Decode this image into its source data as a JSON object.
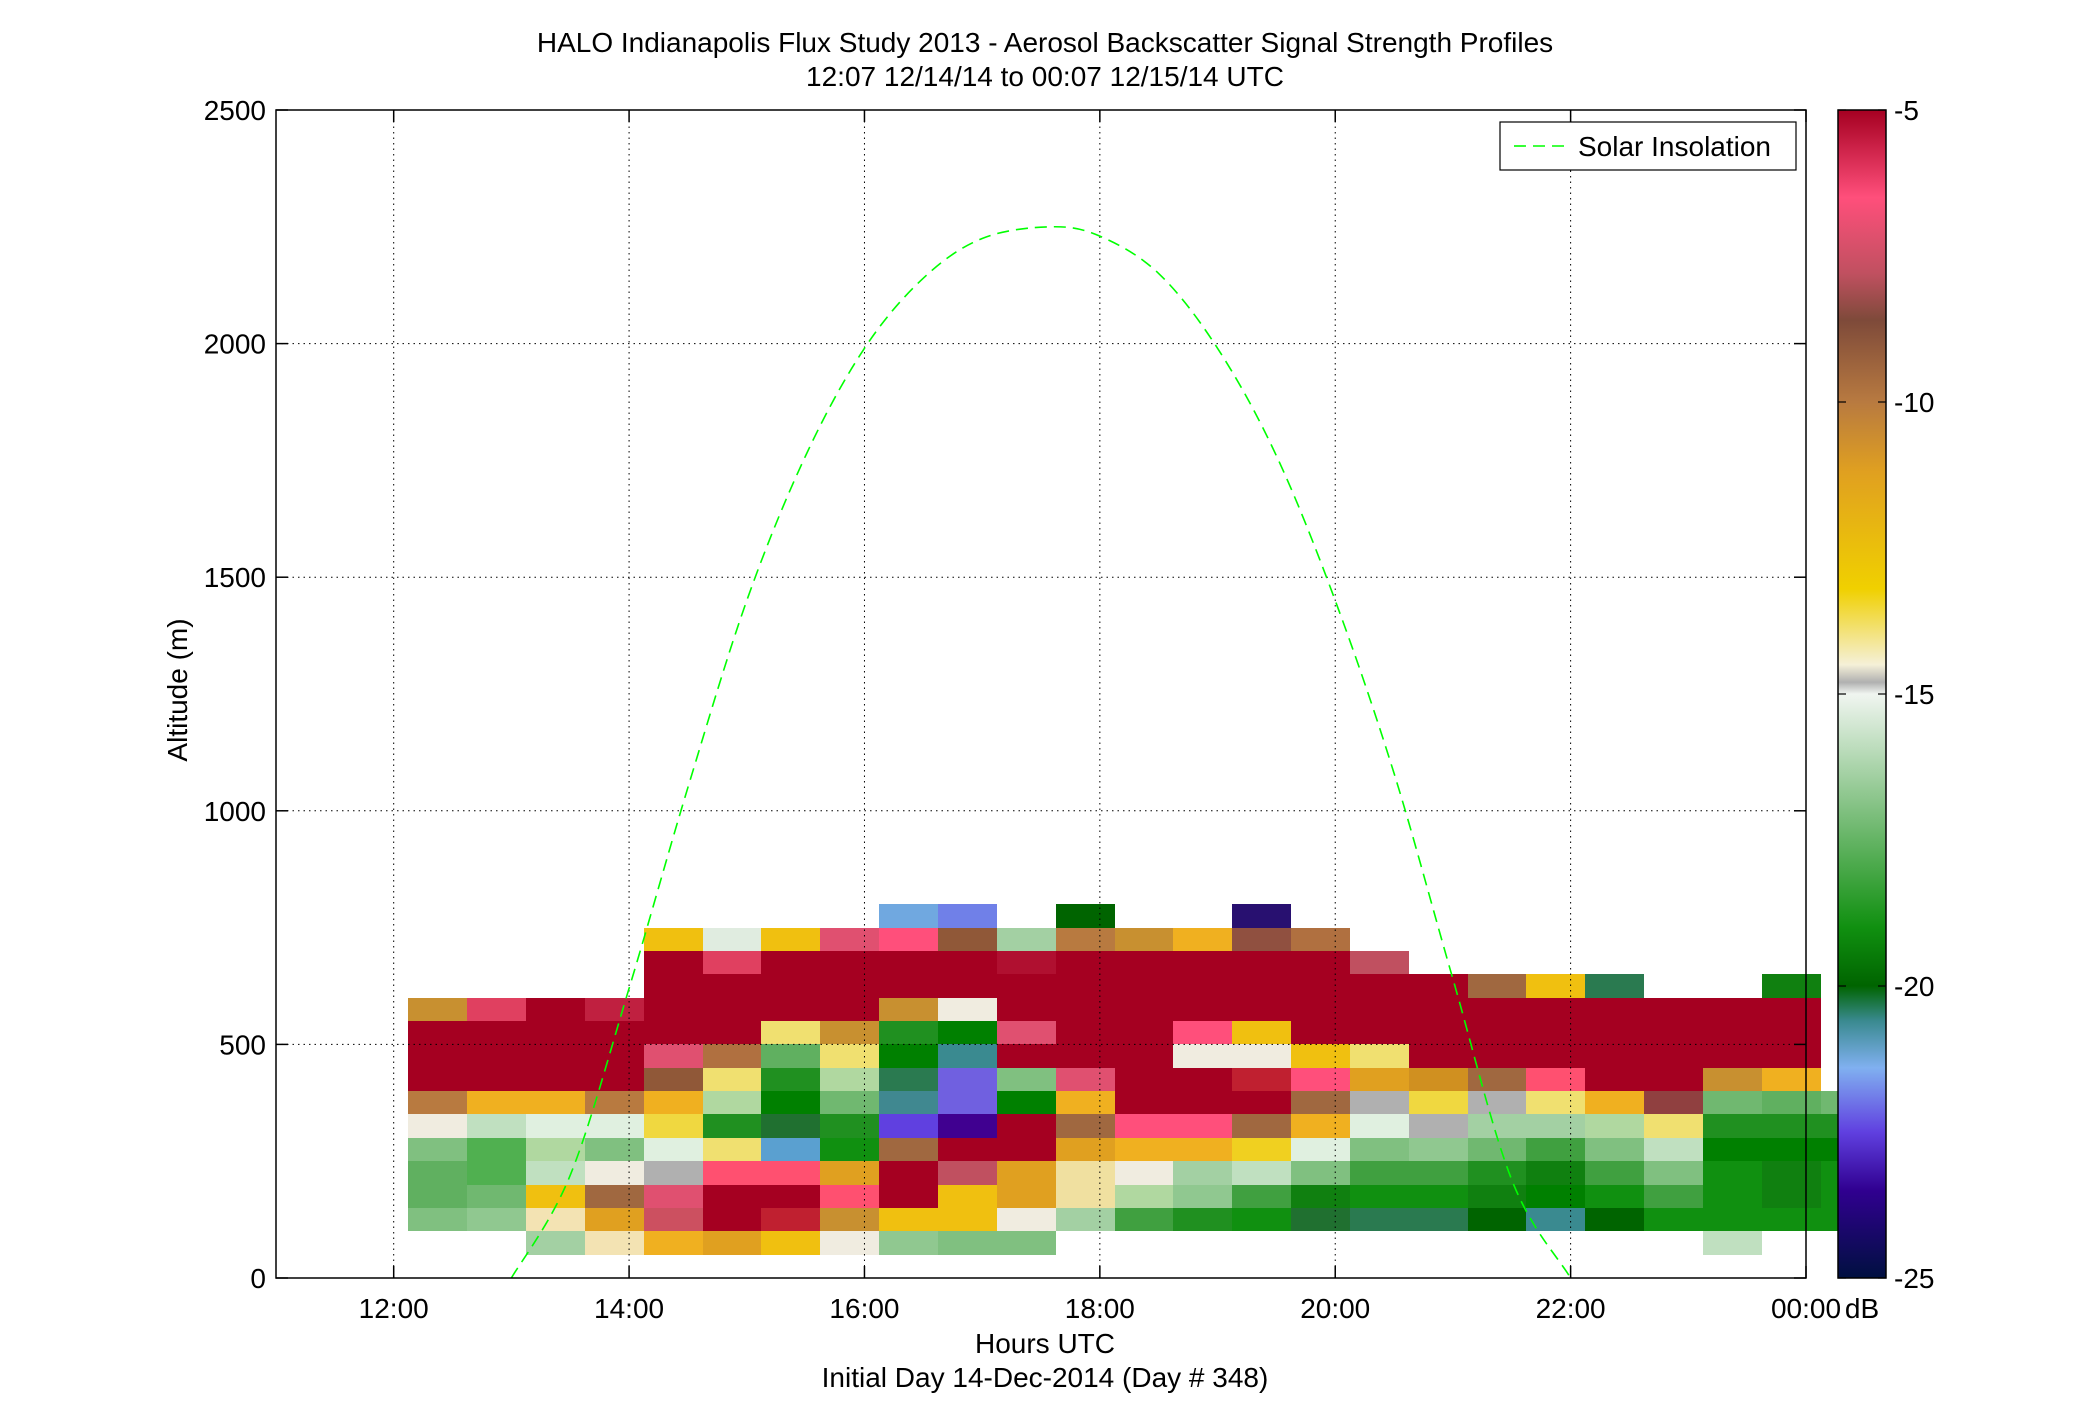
{
  "chart_data": {
    "type": "heatmap",
    "title_line1": "HALO Indianapolis Flux Study 2013 - Aerosol Backscatter Signal Strength Profiles",
    "title_line2": "12:07 12/14/14 to 00:07 12/15/14  UTC",
    "xlabel": "Hours UTC",
    "xlabel2": "Initial Day 14-Dec-2014 (Day # 348)",
    "ylabel": "Altitude (m)",
    "xlim": [
      11.0,
      24.0
    ],
    "ylim": [
      0,
      2500
    ],
    "x_ticks": [
      12,
      14,
      16,
      18,
      20,
      22,
      24
    ],
    "x_tick_labels": [
      "12:00",
      "14:00",
      "16:00",
      "18:00",
      "20:00",
      "22:00",
      "00:00"
    ],
    "y_ticks": [
      0,
      500,
      1000,
      1500,
      2000,
      2500
    ],
    "y_tick_labels": [
      "0",
      "500",
      "1000",
      "1500",
      "2000",
      "2500"
    ],
    "grid": true,
    "colorbar": {
      "label": "dB",
      "range": [
        -25,
        -5
      ],
      "ticks": [
        -5,
        -10,
        -15,
        -20,
        -25
      ],
      "tick_labels": [
        "-5",
        "-10",
        "-15",
        "-20",
        "-25"
      ],
      "stops": [
        {
          "v": -5,
          "c": "#a50021"
        },
        {
          "v": -6.5,
          "c": "#ff4f7b"
        },
        {
          "v": -7.8,
          "c": "#c05060"
        },
        {
          "v": -8.6,
          "c": "#7e4a3a"
        },
        {
          "v": -10.0,
          "c": "#b87a40"
        },
        {
          "v": -11.2,
          "c": "#e0a020"
        },
        {
          "v": -13.2,
          "c": "#f0d000"
        },
        {
          "v": -14.5,
          "c": "#f5f0d8"
        },
        {
          "v": -14.8,
          "c": "#b0b0b0"
        },
        {
          "v": -15.0,
          "c": "#f0f5f0"
        },
        {
          "v": -17.0,
          "c": "#80c080"
        },
        {
          "v": -19.0,
          "c": "#109010"
        },
        {
          "v": -20.0,
          "c": "#006400"
        },
        {
          "v": -20.6,
          "c": "#3a8a90"
        },
        {
          "v": -21.4,
          "c": "#80b0f0"
        },
        {
          "v": -22.5,
          "c": "#6040e0"
        },
        {
          "v": -23.5,
          "c": "#300090"
        },
        {
          "v": -25.0,
          "c": "#001040"
        }
      ]
    },
    "grid_x_start": 12.125,
    "grid_x_step": 0.5,
    "grid_y_start": 50,
    "grid_y_step": 50,
    "cell_colors": [
      [
        "",
        "",
        "#a3d0a3",
        "#f3e3b3",
        "#f0b020",
        "#e0a020",
        "#f0c010",
        "#f0ece0",
        "#90c890",
        "#80c080",
        "#80c080",
        "",
        "",
        "",
        "",
        "",
        "",
        "",
        "",
        "",
        "",
        "",
        "#c0e0c0",
        "",
        ""
      ],
      [
        "#80c080",
        "#90c890",
        "#f3e3b3",
        "#e0a020",
        "#cc5060",
        "#a50021",
        "#c02030",
        "#c89030",
        "#f0c010",
        "#f0c010",
        "#f0ece0",
        "#a3d0a3",
        "#40a040",
        "#209020",
        "#109010",
        "#207030",
        "#2a7a50",
        "#2a7a50",
        "#006400",
        "#3a8a90",
        "#006400",
        "#109010",
        "#109010",
        "#109010",
        "#109010"
      ],
      [
        "#60b060",
        "#70b870",
        "#f0c010",
        "#a06840",
        "#e05070",
        "#a50021",
        "#a50021",
        "#ff5070",
        "#a50021",
        "#f0c010",
        "#e0a020",
        "#f0e0a0",
        "#b0d8a0",
        "#90c890",
        "#40a040",
        "#108010",
        "#109010",
        "#109010",
        "#108010",
        "#008000",
        "#109010",
        "#40a040",
        "#109010",
        "#108010",
        "#109010"
      ],
      [
        "#60b060",
        "#50b050",
        "#c0e0c0",
        "#f0ece0",
        "#b0b0b0",
        "#ff5070",
        "#ff5070",
        "#e0a020",
        "#a50021",
        "#c05060",
        "#e0a020",
        "#f0e0a0",
        "#f0ece0",
        "#a3d0a3",
        "#c0e0c0",
        "#80c080",
        "#40a040",
        "#40a040",
        "#209020",
        "#108010",
        "#40a040",
        "#80c080",
        "#109010",
        "#108010",
        "#109010"
      ],
      [
        "#80c080",
        "#50b050",
        "#b0d8a0",
        "#80c080",
        "#e0f0e0",
        "#f0e070",
        "#5aa0d0",
        "#109010",
        "#a06840",
        "#a50021",
        "#a50021",
        "#e0a020",
        "#f0b020",
        "#f0b020",
        "#f0d020",
        "#e0f0e0",
        "#80c080",
        "#90c890",
        "#70b870",
        "#40a040",
        "#80c080",
        "#c0e0c0",
        "#008000",
        "#008000",
        "#008000"
      ],
      [
        "#f0ece0",
        "#c0e0c0",
        "#e0f0e0",
        "#e0f0e0",
        "#f0d840",
        "#209020",
        "#207030",
        "#209020",
        "#6040e0",
        "#400090",
        "#a50021",
        "#a06840",
        "#ff4f7b",
        "#ff4f7b",
        "#a06840",
        "#f0b020",
        "#e0f0e0",
        "#b0b0b0",
        "#a3d0a3",
        "#a3d0a3",
        "#b0d8a0",
        "#f0e070",
        "#209020",
        "#209020",
        "#209020"
      ],
      [
        "#b87a40",
        "#f0b020",
        "#f0b020",
        "#b87a40",
        "#f0b020",
        "#b0d8a0",
        "#008000",
        "#70b870",
        "#408890",
        "#7060e0",
        "#008000",
        "#f0b020",
        "#a50021",
        "#a50021",
        "#a50021",
        "#a06840",
        "#b0b0b0",
        "#f0d840",
        "#b0b0b0",
        "#f0e070",
        "#f0b020",
        "#904040",
        "#70b870",
        "#60b060",
        "#70b870"
      ],
      [
        "#a50021",
        "#a50021",
        "#a50021",
        "#a50021",
        "#905838",
        "#f0e070",
        "#209020",
        "#b0d8a0",
        "#2a7a50",
        "#7060e0",
        "#80c080",
        "#e05070",
        "#a50021",
        "#a50021",
        "#c02030",
        "#ff4f7b",
        "#e0a020",
        "#d09020",
        "#a06840",
        "#ff5070",
        "#a50021",
        "#a50021",
        "#c89030",
        "#f0b020",
        ""
      ],
      [
        "#a50021",
        "#a50021",
        "#a50021",
        "#a50021",
        "#e05070",
        "#b07040",
        "#60b060",
        "#f0e070",
        "#008000",
        "#3a8a90",
        "#a50021",
        "#a50021",
        "#a50021",
        "#f0ece0",
        "#f0ece0",
        "#f0c010",
        "#f0e070",
        "#a50021",
        "#a50021",
        "#a50021",
        "#a50021",
        "#a50021",
        "#a50021",
        "#a50021",
        ""
      ],
      [
        "#a50021",
        "#a50021",
        "#a50021",
        "#a50021",
        "#a50021",
        "#a50021",
        "#f0e070",
        "#c89030",
        "#209020",
        "#008000",
        "#e05070",
        "#a50021",
        "#a50021",
        "#ff4f7b",
        "#f0c010",
        "#a50021",
        "#a50021",
        "#a50021",
        "#a50021",
        "#a50021",
        "#a50021",
        "#a50021",
        "#a50021",
        "#a50021",
        ""
      ],
      [
        "#c89030",
        "#e04060",
        "#a50021",
        "#c02040",
        "#a50021",
        "#a50021",
        "#a50021",
        "#a50021",
        "#c89030",
        "#f0ece0",
        "#a50021",
        "#a50021",
        "#a50021",
        "#a50021",
        "#a50021",
        "#a50021",
        "#a50021",
        "#a50021",
        "#a50021",
        "#a50021",
        "#a50021",
        "#a50021",
        "#a50021",
        "#a50021",
        ""
      ],
      [
        "",
        "",
        "",
        "",
        "#a50021",
        "#a50021",
        "#a50021",
        "#a50021",
        "#a50021",
        "#a50021",
        "#a50021",
        "#a50021",
        "#a50021",
        "#a50021",
        "#a50021",
        "#a50021",
        "#a50021",
        "#a50021",
        "#a06840",
        "#f0c010",
        "#2a7a50",
        "",
        "",
        "#108010",
        ""
      ],
      [
        "",
        "",
        "",
        "",
        "#a50021",
        "#e04060",
        "#a50021",
        "#a50021",
        "#a50021",
        "#a50021",
        "#b01030",
        "#a50021",
        "#a50021",
        "#a50021",
        "#a50021",
        "#a50021",
        "#c05060",
        "",
        "",
        "",
        "",
        "",
        "",
        "",
        ""
      ],
      [
        "",
        "",
        "",
        "",
        "#f0c010",
        "#e0ece0",
        "#f0c010",
        "#e05070",
        "#ff4f7b",
        "#905838",
        "#a3d0a3",
        "#b87a40",
        "#c89030",
        "#f0b020",
        "#905040",
        "#b07040",
        "",
        "",
        "",
        "",
        "",
        "",
        "",
        "",
        ""
      ],
      [
        "",
        "",
        "",
        "",
        "",
        "",
        "",
        "",
        "#70a8e0",
        "#7080e8",
        "",
        "#006400",
        "",
        "",
        "#281070",
        "",
        "",
        "",
        "",
        "",
        "",
        "",
        "",
        "",
        ""
      ]
    ],
    "series": [
      {
        "name": "Solar Insolation",
        "color": "#00ff00",
        "x": [
          13.0,
          13.5,
          14.0,
          14.5,
          15.0,
          15.5,
          16.0,
          16.5,
          17.0,
          17.58,
          18.0,
          18.5,
          19.0,
          19.5,
          20.0,
          20.5,
          21.0,
          21.5,
          22.0,
          22.2
        ],
        "y": [
          0,
          220,
          620,
          1050,
          1450,
          1760,
          1990,
          2140,
          2225,
          2250,
          2230,
          2150,
          1990,
          1760,
          1450,
          1080,
          640,
          210,
          0,
          -80
        ]
      }
    ],
    "legend_position": "top-right"
  }
}
